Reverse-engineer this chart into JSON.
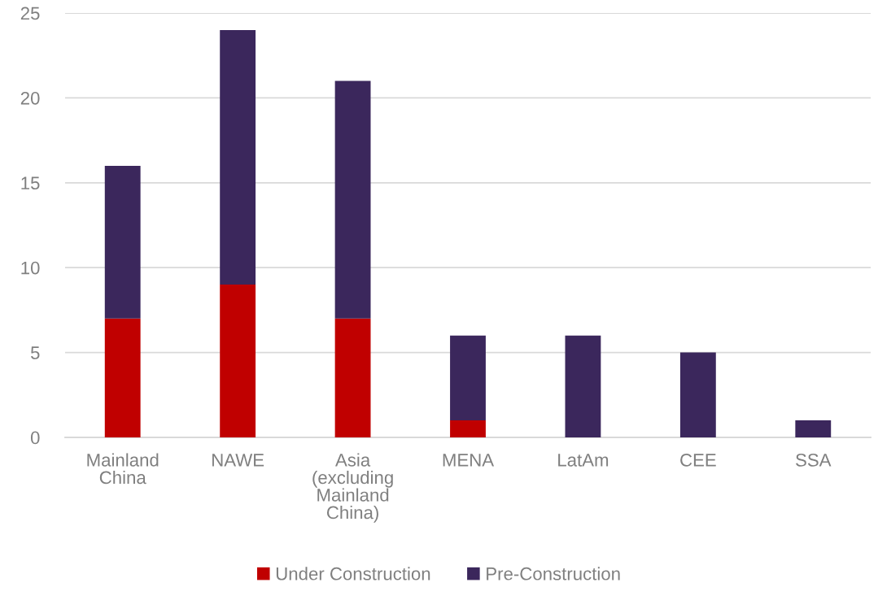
{
  "chart_data": {
    "type": "bar",
    "stacked": true,
    "categories": [
      "Mainland China",
      "NAWE",
      "Asia (excluding Mainland China)",
      "MENA",
      "LatAm",
      "CEE",
      "SSA"
    ],
    "series": [
      {
        "name": "Under Construction",
        "color": "#c00000",
        "values": [
          7,
          9,
          7,
          1,
          0,
          0,
          0
        ]
      },
      {
        "name": "Pre-Construction",
        "color": "#3b275c",
        "values": [
          9,
          15,
          14,
          5,
          6,
          5,
          1
        ]
      }
    ],
    "ylim": [
      0,
      25
    ],
    "yticks": [
      0,
      5,
      10,
      15,
      20,
      25
    ],
    "grid": "y",
    "legend": "bottom"
  }
}
